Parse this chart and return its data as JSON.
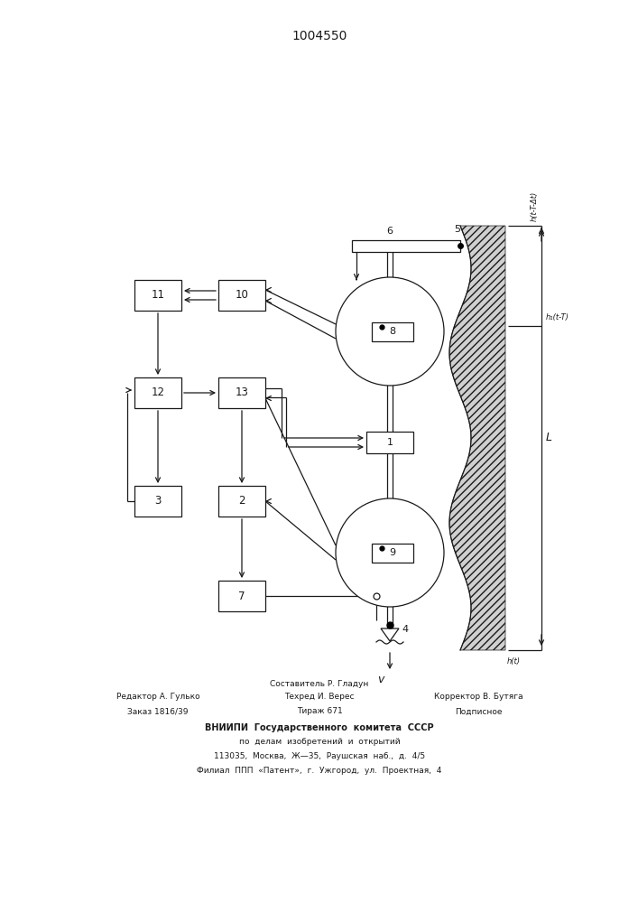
{
  "title": "1004550",
  "bg_color": "#ffffff",
  "lc": "#1a1a1a",
  "footer_col1_line1": "Редактор А. Гулько",
  "footer_col1_line2": "Заказ 1816/39",
  "footer_col2_line1": "Составитель Р. Гладун",
  "footer_col2_line2": "Техред И. Верес",
  "footer_col2_line3": "Тираж 671",
  "footer_col3_line1": "Корректор В. Бутяга",
  "footer_col3_line2": "Подписное",
  "footer_center1": "ВНИИПИ  Государственного  комитета  СССР",
  "footer_center2": "по  делам  изобретений  и  открытий",
  "footer_center3": "113035,  Москва,  Ж—35,  Раушская  наб.,  д.  4/5",
  "footer_center4": "Филиал  ППП  «Патент»,  г.  Ужгород,  ул.  Проектная,  4",
  "label_h1": "h(t-T-Δt)",
  "label_h2": "h₁(t-T)",
  "label_h3": "h(t)",
  "label_L": "L",
  "label_v": "v",
  "label_4": "4",
  "label_5": "5",
  "label_6": "6"
}
